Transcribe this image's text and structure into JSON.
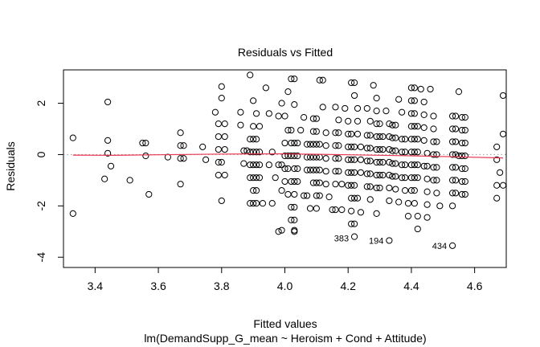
{
  "chart_data": {
    "type": "scatter",
    "title": "Residuals vs Fitted",
    "xlabel": "Fitted values",
    "subtitle": "lm(DemandSupp_G_mean ~ Heroism + Cond + Attitude)",
    "ylabel": "Residuals",
    "xlim": [
      3.3,
      4.7
    ],
    "ylim": [
      -4.4,
      3.3
    ],
    "x_ticks": [
      3.4,
      3.6,
      3.8,
      4.0,
      4.2,
      4.4,
      4.6
    ],
    "x_tick_labels": [
      "3.4",
      "3.6",
      "3.8",
      "4.0",
      "4.2",
      "4.4",
      "4.6"
    ],
    "y_ticks": [
      -4,
      -2,
      0,
      2
    ],
    "y_tick_labels": [
      "-4",
      "-2",
      "0",
      "2"
    ],
    "grid": false,
    "reference_line": {
      "y": 0,
      "style": "dotted",
      "color": "#999999"
    },
    "smoother": {
      "color": "#e8344e",
      "x": [
        3.33,
        3.45,
        3.6,
        3.8,
        4.0,
        4.2,
        4.4,
        4.55,
        4.69
      ],
      "y": [
        -0.02,
        -0.03,
        -0.01,
        0.02,
        0.03,
        -0.01,
        -0.05,
        -0.09,
        -0.13
      ]
    },
    "labeled_points": [
      {
        "label": "383",
        "x": 4.22,
        "y": -3.25
      },
      {
        "label": "194",
        "x": 4.33,
        "y": -3.35
      },
      {
        "label": "434",
        "x": 4.53,
        "y": -3.55
      }
    ],
    "points": [
      [
        3.33,
        0.65
      ],
      [
        3.33,
        -2.3
      ],
      [
        3.44,
        2.05
      ],
      [
        3.44,
        0.55
      ],
      [
        3.44,
        0.05
      ],
      [
        3.43,
        -0.95
      ],
      [
        3.45,
        -0.45
      ],
      [
        3.51,
        -1.0
      ],
      [
        3.55,
        0.45
      ],
      [
        3.56,
        0.45
      ],
      [
        3.56,
        -0.05
      ],
      [
        3.57,
        -1.55
      ],
      [
        3.63,
        -0.1
      ],
      [
        3.67,
        0.85
      ],
      [
        3.67,
        0.35
      ],
      [
        3.68,
        0.35
      ],
      [
        3.67,
        -0.15
      ],
      [
        3.68,
        -0.15
      ],
      [
        3.67,
        -1.15
      ],
      [
        3.74,
        0.3
      ],
      [
        3.75,
        -0.2
      ],
      [
        3.78,
        1.65
      ],
      [
        3.8,
        2.65
      ],
      [
        3.8,
        2.2
      ],
      [
        3.79,
        1.2
      ],
      [
        3.81,
        1.2
      ],
      [
        3.79,
        0.7
      ],
      [
        3.81,
        0.7
      ],
      [
        3.79,
        0.2
      ],
      [
        3.81,
        0.2
      ],
      [
        3.79,
        -0.3
      ],
      [
        3.8,
        -0.3
      ],
      [
        3.79,
        -0.8
      ],
      [
        3.81,
        -0.8
      ],
      [
        3.8,
        -1.8
      ],
      [
        3.86,
        1.65
      ],
      [
        3.86,
        1.15
      ],
      [
        3.87,
        0.15
      ],
      [
        3.88,
        0.15
      ],
      [
        3.87,
        -0.35
      ],
      [
        3.89,
        3.1
      ],
      [
        3.9,
        2.1
      ],
      [
        3.91,
        1.6
      ],
      [
        3.9,
        1.1
      ],
      [
        3.92,
        1.1
      ],
      [
        3.89,
        0.6
      ],
      [
        3.9,
        0.6
      ],
      [
        3.91,
        0.6
      ],
      [
        3.89,
        0.1
      ],
      [
        3.9,
        0.1
      ],
      [
        3.91,
        0.1
      ],
      [
        3.92,
        0.1
      ],
      [
        3.89,
        -0.4
      ],
      [
        3.9,
        -0.4
      ],
      [
        3.91,
        -0.4
      ],
      [
        3.92,
        -0.4
      ],
      [
        3.89,
        -0.9
      ],
      [
        3.9,
        -0.9
      ],
      [
        3.91,
        -0.9
      ],
      [
        3.92,
        -0.9
      ],
      [
        3.9,
        -1.4
      ],
      [
        3.91,
        -1.4
      ],
      [
        3.89,
        -1.9
      ],
      [
        3.9,
        -1.9
      ],
      [
        3.91,
        -1.9
      ],
      [
        3.93,
        -1.9
      ],
      [
        3.94,
        2.6
      ],
      [
        3.95,
        1.6
      ],
      [
        3.96,
        0.1
      ],
      [
        3.95,
        -0.4
      ],
      [
        3.97,
        -0.9
      ],
      [
        3.96,
        -1.9
      ],
      [
        3.98,
        1.5
      ],
      [
        3.99,
        2.0
      ],
      [
        3.98,
        -0.4
      ],
      [
        3.99,
        -0.4
      ],
      [
        3.99,
        -1.4
      ],
      [
        3.99,
        -2.95
      ],
      [
        3.98,
        -3.0
      ],
      [
        4.0,
        1.5
      ],
      [
        4.01,
        0.95
      ],
      [
        4.0,
        0.45
      ],
      [
        4.02,
        0.45
      ],
      [
        4.0,
        -0.05
      ],
      [
        4.01,
        -0.05
      ],
      [
        4.02,
        -0.05
      ],
      [
        4.0,
        -0.55
      ],
      [
        4.01,
        -0.55
      ],
      [
        4.0,
        -1.05
      ],
      [
        4.02,
        -1.05
      ],
      [
        4.01,
        -1.55
      ],
      [
        4.01,
        2.45
      ],
      [
        4.02,
        2.95
      ],
      [
        4.03,
        2.95
      ],
      [
        4.03,
        1.95
      ],
      [
        4.02,
        0.95
      ],
      [
        4.03,
        0.45
      ],
      [
        4.04,
        0.45
      ],
      [
        4.03,
        -0.05
      ],
      [
        4.04,
        -0.05
      ],
      [
        4.03,
        -0.55
      ],
      [
        4.04,
        -0.55
      ],
      [
        4.03,
        -1.05
      ],
      [
        4.04,
        -1.05
      ],
      [
        4.03,
        -1.55
      ],
      [
        4.02,
        -2.05
      ],
      [
        4.03,
        -2.05
      ],
      [
        4.02,
        -2.55
      ],
      [
        4.03,
        -2.55
      ],
      [
        4.03,
        -3.0
      ],
      [
        4.03,
        -2.95
      ],
      [
        4.05,
        0.95
      ],
      [
        4.06,
        1.45
      ],
      [
        4.07,
        0.4
      ],
      [
        4.08,
        0.4
      ],
      [
        4.07,
        -0.1
      ],
      [
        4.08,
        -0.1
      ],
      [
        4.07,
        -0.6
      ],
      [
        4.08,
        -0.6
      ],
      [
        4.06,
        -1.6
      ],
      [
        4.07,
        -1.6
      ],
      [
        4.08,
        -2.1
      ],
      [
        4.09,
        1.4
      ],
      [
        4.1,
        1.4
      ],
      [
        4.09,
        0.9
      ],
      [
        4.1,
        0.9
      ],
      [
        4.09,
        0.4
      ],
      [
        4.1,
        0.4
      ],
      [
        4.11,
        0.4
      ],
      [
        4.09,
        -0.1
      ],
      [
        4.1,
        -0.1
      ],
      [
        4.11,
        -0.1
      ],
      [
        4.09,
        -0.6
      ],
      [
        4.1,
        -0.6
      ],
      [
        4.11,
        -0.6
      ],
      [
        4.09,
        -1.1
      ],
      [
        4.1,
        -1.1
      ],
      [
        4.11,
        -1.1
      ],
      [
        4.1,
        -1.6
      ],
      [
        4.11,
        -1.6
      ],
      [
        4.1,
        -2.1
      ],
      [
        4.11,
        2.9
      ],
      [
        4.12,
        2.9
      ],
      [
        4.12,
        1.85
      ],
      [
        4.13,
        0.85
      ],
      [
        4.13,
        0.35
      ],
      [
        4.13,
        -0.15
      ],
      [
        4.13,
        -0.65
      ],
      [
        4.13,
        -1.15
      ],
      [
        4.14,
        -1.65
      ],
      [
        4.15,
        -2.15
      ],
      [
        4.16,
        -2.15
      ],
      [
        4.16,
        1.85
      ],
      [
        4.17,
        1.35
      ],
      [
        4.16,
        0.85
      ],
      [
        4.17,
        0.85
      ],
      [
        4.16,
        0.35
      ],
      [
        4.17,
        0.35
      ],
      [
        4.16,
        -0.15
      ],
      [
        4.17,
        -0.15
      ],
      [
        4.16,
        -0.65
      ],
      [
        4.17,
        -0.65
      ],
      [
        4.16,
        -1.15
      ],
      [
        4.18,
        -1.15
      ],
      [
        4.18,
        -2.15
      ],
      [
        4.19,
        1.8
      ],
      [
        4.2,
        1.3
      ],
      [
        4.2,
        0.8
      ],
      [
        4.21,
        0.8
      ],
      [
        4.2,
        0.3
      ],
      [
        4.21,
        0.3
      ],
      [
        4.22,
        0.3
      ],
      [
        4.2,
        -0.2
      ],
      [
        4.21,
        -0.2
      ],
      [
        4.22,
        -0.2
      ],
      [
        4.2,
        -0.7
      ],
      [
        4.21,
        -0.7
      ],
      [
        4.22,
        -0.7
      ],
      [
        4.2,
        -1.2
      ],
      [
        4.21,
        -1.2
      ],
      [
        4.22,
        -1.2
      ],
      [
        4.21,
        -1.7
      ],
      [
        4.22,
        -1.7
      ],
      [
        4.21,
        -2.2
      ],
      [
        4.21,
        -2.7
      ],
      [
        4.21,
        2.8
      ],
      [
        4.22,
        2.8
      ],
      [
        4.22,
        2.3
      ],
      [
        4.23,
        1.8
      ],
      [
        4.23,
        1.3
      ],
      [
        4.23,
        0.8
      ],
      [
        4.24,
        0.3
      ],
      [
        4.24,
        -0.2
      ],
      [
        4.24,
        -0.7
      ],
      [
        4.23,
        -1.7
      ],
      [
        4.24,
        -2.25
      ],
      [
        4.22,
        -2.7
      ],
      [
        4.22,
        -3.2
      ],
      [
        4.26,
        1.8
      ],
      [
        4.27,
        1.3
      ],
      [
        4.26,
        0.75
      ],
      [
        4.27,
        0.75
      ],
      [
        4.26,
        0.25
      ],
      [
        4.27,
        0.25
      ],
      [
        4.26,
        -0.25
      ],
      [
        4.27,
        -0.25
      ],
      [
        4.26,
        -0.75
      ],
      [
        4.27,
        -0.75
      ],
      [
        4.26,
        -1.25
      ],
      [
        4.27,
        -1.25
      ],
      [
        4.27,
        -1.75
      ],
      [
        4.28,
        2.7
      ],
      [
        4.29,
        2.2
      ],
      [
        4.29,
        1.7
      ],
      [
        4.29,
        1.2
      ],
      [
        4.3,
        1.2
      ],
      [
        4.29,
        0.7
      ],
      [
        4.3,
        0.7
      ],
      [
        4.31,
        0.7
      ],
      [
        4.29,
        0.2
      ],
      [
        4.3,
        0.2
      ],
      [
        4.31,
        0.2
      ],
      [
        4.29,
        -0.3
      ],
      [
        4.3,
        -0.3
      ],
      [
        4.31,
        -0.3
      ],
      [
        4.29,
        -0.8
      ],
      [
        4.3,
        -0.8
      ],
      [
        4.31,
        -0.8
      ],
      [
        4.29,
        -1.3
      ],
      [
        4.3,
        -1.3
      ],
      [
        4.29,
        -2.3
      ],
      [
        4.32,
        1.7
      ],
      [
        4.33,
        1.2
      ],
      [
        4.33,
        0.7
      ],
      [
        4.33,
        0.2
      ],
      [
        4.33,
        -0.3
      ],
      [
        4.33,
        -0.8
      ],
      [
        4.33,
        -1.3
      ],
      [
        4.33,
        -1.8
      ],
      [
        4.33,
        -3.35
      ],
      [
        4.34,
        1.15
      ],
      [
        4.35,
        1.15
      ],
      [
        4.34,
        0.65
      ],
      [
        4.35,
        0.65
      ],
      [
        4.34,
        0.15
      ],
      [
        4.35,
        0.15
      ],
      [
        4.34,
        -0.35
      ],
      [
        4.35,
        -0.35
      ],
      [
        4.34,
        -0.85
      ],
      [
        4.35,
        -0.85
      ],
      [
        4.35,
        -1.35
      ],
      [
        4.36,
        -1.85
      ],
      [
        4.36,
        2.15
      ],
      [
        4.37,
        1.65
      ],
      [
        4.37,
        0.6
      ],
      [
        4.38,
        0.6
      ],
      [
        4.37,
        0.1
      ],
      [
        4.38,
        0.1
      ],
      [
        4.37,
        -0.4
      ],
      [
        4.38,
        -0.4
      ],
      [
        4.37,
        -0.9
      ],
      [
        4.38,
        -0.9
      ],
      [
        4.38,
        -1.4
      ],
      [
        4.39,
        -1.9
      ],
      [
        4.39,
        -2.4
      ],
      [
        4.4,
        2.6
      ],
      [
        4.41,
        2.6
      ],
      [
        4.4,
        2.1
      ],
      [
        4.41,
        2.1
      ],
      [
        4.4,
        1.6
      ],
      [
        4.41,
        1.6
      ],
      [
        4.4,
        1.1
      ],
      [
        4.41,
        1.1
      ],
      [
        4.42,
        1.1
      ],
      [
        4.4,
        0.6
      ],
      [
        4.41,
        0.6
      ],
      [
        4.42,
        0.6
      ],
      [
        4.4,
        0.1
      ],
      [
        4.41,
        0.1
      ],
      [
        4.42,
        0.1
      ],
      [
        4.4,
        -0.4
      ],
      [
        4.41,
        -0.4
      ],
      [
        4.42,
        -0.4
      ],
      [
        4.4,
        -0.9
      ],
      [
        4.41,
        -0.9
      ],
      [
        4.42,
        -0.9
      ],
      [
        4.4,
        -1.4
      ],
      [
        4.41,
        -1.4
      ],
      [
        4.41,
        -1.9
      ],
      [
        4.42,
        -2.4
      ],
      [
        4.42,
        -2.9
      ],
      [
        4.43,
        2.55
      ],
      [
        4.44,
        2.05
      ],
      [
        4.44,
        1.55
      ],
      [
        4.44,
        1.05
      ],
      [
        4.44,
        0.55
      ],
      [
        4.45,
        0.05
      ],
      [
        4.44,
        -0.45
      ],
      [
        4.45,
        -0.45
      ],
      [
        4.45,
        -0.95
      ],
      [
        4.45,
        -1.45
      ],
      [
        4.45,
        -1.95
      ],
      [
        4.45,
        -2.45
      ],
      [
        4.46,
        2.55
      ],
      [
        4.47,
        1.5
      ],
      [
        4.47,
        1.0
      ],
      [
        4.47,
        0.5
      ],
      [
        4.48,
        0.5
      ],
      [
        4.47,
        0.0
      ],
      [
        4.48,
        0.0
      ],
      [
        4.47,
        -0.5
      ],
      [
        4.48,
        -0.5
      ],
      [
        4.47,
        -1.0
      ],
      [
        4.48,
        -1.0
      ],
      [
        4.48,
        -1.5
      ],
      [
        4.49,
        -2.0
      ],
      [
        4.53,
        1.5
      ],
      [
        4.54,
        1.5
      ],
      [
        4.53,
        1.0
      ],
      [
        4.54,
        1.0
      ],
      [
        4.53,
        0.5
      ],
      [
        4.54,
        0.5
      ],
      [
        4.53,
        0.0
      ],
      [
        4.54,
        0.0
      ],
      [
        4.53,
        -0.5
      ],
      [
        4.54,
        -0.5
      ],
      [
        4.53,
        -1.0
      ],
      [
        4.54,
        -1.0
      ],
      [
        4.53,
        -1.5
      ],
      [
        4.54,
        -1.5
      ],
      [
        4.53,
        -2.0
      ],
      [
        4.53,
        -3.55
      ],
      [
        4.55,
        2.45
      ],
      [
        4.55,
        -0.05
      ],
      [
        4.56,
        1.45
      ],
      [
        4.57,
        1.45
      ],
      [
        4.56,
        0.95
      ],
      [
        4.57,
        0.95
      ],
      [
        4.56,
        0.45
      ],
      [
        4.57,
        0.45
      ],
      [
        4.56,
        -0.05
      ],
      [
        4.57,
        -0.05
      ],
      [
        4.56,
        -0.55
      ],
      [
        4.57,
        -0.55
      ],
      [
        4.56,
        -1.05
      ],
      [
        4.57,
        -1.05
      ],
      [
        4.56,
        -1.55
      ],
      [
        4.57,
        -1.55
      ],
      [
        4.67,
        0.3
      ],
      [
        4.67,
        -0.2
      ],
      [
        4.68,
        -0.7
      ],
      [
        4.67,
        -1.2
      ],
      [
        4.67,
        -1.7
      ],
      [
        4.69,
        2.3
      ],
      [
        4.69,
        0.8
      ],
      [
        4.69,
        -1.2
      ]
    ]
  }
}
